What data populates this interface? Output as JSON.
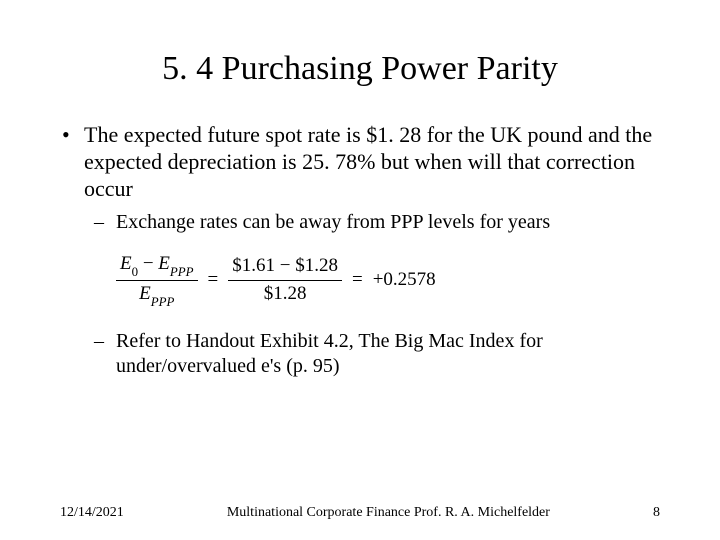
{
  "title": "5. 4 Purchasing Power Parity",
  "bullets": {
    "main": "The expected future spot rate is $1. 28 for the UK pound and the expected depreciation is 25. 78% but when will that correction occur",
    "sub1": "Exchange rates can be away from PPP levels for years",
    "sub2": "Refer to Handout Exhibit 4.2, The Big Mac Index for under/overvalued e's (p. 95)"
  },
  "equation": {
    "lhs_num_a": "E",
    "lhs_num_a_sub": "0",
    "lhs_num_minus": " − ",
    "lhs_num_b": "E",
    "lhs_num_b_sub": "PPP",
    "lhs_den": "E",
    "lhs_den_sub": "PPP",
    "eq1": "=",
    "mid_num": "$1.61 − $1.28",
    "mid_den": "$1.28",
    "eq2": "=",
    "rhs": "+0.2578"
  },
  "footer": {
    "date": "12/14/2021",
    "center": "Multinational Corporate Finance Prof. R. A. Michelfelder",
    "page": "8"
  },
  "style": {
    "background_color": "#ffffff",
    "text_color": "#000000",
    "title_fontsize": 34,
    "body_fontsize": 22,
    "sub_fontsize": 20,
    "eq_fontsize": 19,
    "footer_fontsize": 14
  }
}
